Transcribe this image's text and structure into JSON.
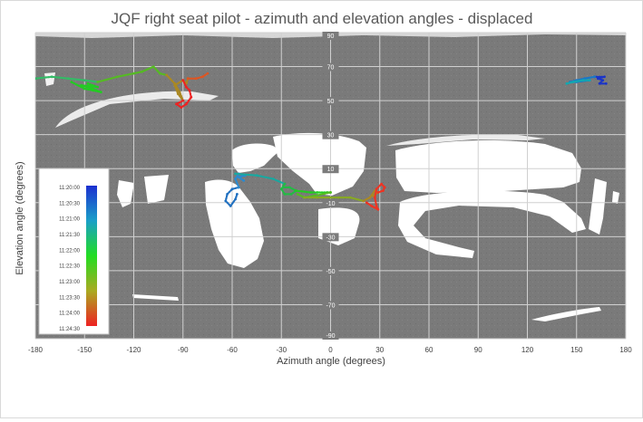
{
  "chart_data": {
    "type": "scatter",
    "title": "JQF right seat pilot - azimuth and elevation angles - displaced",
    "xlabel": "Azimuth angle (degrees)",
    "ylabel": "Elevation angle (degrees)",
    "xlim": [
      -180,
      180
    ],
    "ylim": [
      -90,
      90
    ],
    "x_ticks": [
      -180,
      -150,
      -120,
      -90,
      -60,
      -30,
      0,
      30,
      60,
      90,
      120,
      150,
      180
    ],
    "y_ticks": [
      90,
      70,
      50,
      30,
      10,
      -10,
      -30,
      -50,
      -70,
      -90
    ],
    "grid": true,
    "background_color": "#7b7b7b",
    "obstruction_color": "#ffffff",
    "time_legend": {
      "labels": [
        "11:20:00",
        "11:20:30",
        "11:21:00",
        "11:21:30",
        "11:22:00",
        "11:22:30",
        "11:23:00",
        "11:23:30",
        "11:24:00",
        "11:24:30"
      ],
      "colors": [
        "#1c2fd0",
        "#1aa0c8",
        "#22dd22",
        "#aaaa22",
        "#ee2222"
      ],
      "placement": "left"
    },
    "segments": [
      {
        "color": "#1a34c8",
        "points": [
          [
            168,
            60
          ],
          [
            164,
            60
          ],
          [
            166,
            62
          ],
          [
            163,
            63
          ],
          [
            167,
            64
          ],
          [
            161,
            64
          ]
        ]
      },
      {
        "color": "#1878c8",
        "points": [
          [
            161,
            64
          ],
          [
            155,
            63
          ],
          [
            150,
            62
          ],
          [
            146,
            61
          ],
          [
            150,
            61
          ],
          [
            158,
            62
          ]
        ]
      },
      {
        "color": "#12a8b0",
        "points": [
          [
            158,
            62
          ],
          [
            154,
            62
          ],
          [
            148,
            61
          ],
          [
            144,
            60
          ]
        ]
      },
      {
        "color": "#2070c0",
        "points": [
          [
            -56,
            -1
          ],
          [
            -60,
            -2
          ],
          [
            -63,
            -5
          ],
          [
            -64,
            -9
          ],
          [
            -61,
            -12
          ],
          [
            -58,
            -8
          ],
          [
            -57,
            -5
          ]
        ]
      },
      {
        "color": "#2a8ad0",
        "points": [
          [
            -56,
            -1
          ],
          [
            -58,
            4
          ],
          [
            -56,
            7
          ],
          [
            -52,
            6
          ],
          [
            -56,
            5
          ],
          [
            -53,
            3
          ]
        ]
      },
      {
        "color": "#18a8a0",
        "points": [
          [
            -58,
            7
          ],
          [
            -45,
            6
          ],
          [
            -35,
            4
          ],
          [
            -28,
            1
          ]
        ]
      },
      {
        "color": "#22bb44",
        "points": [
          [
            -28,
            1
          ],
          [
            -30,
            -2
          ],
          [
            -28,
            -5
          ],
          [
            -24,
            -5
          ],
          [
            -21,
            -3
          ],
          [
            -25,
            -1
          ],
          [
            -29,
            -1
          ]
        ]
      },
      {
        "color": "#22cc22",
        "points": [
          [
            -21,
            -3
          ],
          [
            -12,
            -4
          ],
          [
            -8,
            -4
          ],
          [
            -2,
            -4
          ],
          [
            0,
            -4
          ]
        ]
      },
      {
        "color": "#55bb22",
        "points": [
          [
            0,
            -4
          ],
          [
            -10,
            -6
          ],
          [
            -16,
            -7
          ],
          [
            -20,
            -5
          ]
        ]
      },
      {
        "color": "#88aa22",
        "points": [
          [
            -16,
            -7
          ],
          [
            -8,
            -7
          ],
          [
            0,
            -7
          ],
          [
            5,
            -7
          ],
          [
            12,
            -7
          ],
          [
            20,
            -9
          ]
        ]
      },
      {
        "color": "#aa8822",
        "points": [
          [
            20,
            -9
          ],
          [
            24,
            -7
          ],
          [
            27,
            -3
          ],
          [
            29,
            -4
          ],
          [
            26,
            -6
          ]
        ]
      },
      {
        "color": "#ee3322",
        "points": [
          [
            29,
            -4
          ],
          [
            32,
            -3
          ],
          [
            33,
            -1
          ],
          [
            31,
            1
          ],
          [
            28,
            -2
          ],
          [
            27,
            -7
          ],
          [
            28,
            -12
          ],
          [
            29,
            -14
          ],
          [
            25,
            -12
          ],
          [
            22,
            -10
          ]
        ]
      },
      {
        "color": "#33bb66",
        "points": [
          [
            -180,
            63
          ],
          [
            -170,
            64
          ],
          [
            -160,
            63
          ],
          [
            -150,
            62
          ],
          [
            -142,
            61
          ]
        ]
      },
      {
        "color": "#22cc22",
        "points": [
          [
            -158,
            61
          ],
          [
            -150,
            57
          ],
          [
            -145,
            56
          ],
          [
            -140,
            55
          ],
          [
            -145,
            57
          ],
          [
            -152,
            59
          ],
          [
            -142,
            58
          ],
          [
            -148,
            60
          ]
        ]
      },
      {
        "color": "#55bb22",
        "points": [
          [
            -142,
            61
          ],
          [
            -130,
            64
          ],
          [
            -120,
            66
          ],
          [
            -115,
            67
          ],
          [
            -108,
            70
          ],
          [
            -104,
            66
          ],
          [
            -100,
            65
          ]
        ]
      },
      {
        "color": "#aa8822",
        "points": [
          [
            -100,
            65
          ],
          [
            -95,
            60
          ],
          [
            -92,
            55
          ],
          [
            -90,
            50
          ],
          [
            -93,
            54
          ],
          [
            -95,
            59
          ],
          [
            -90,
            62
          ],
          [
            -88,
            60
          ],
          [
            -87,
            63
          ]
        ]
      },
      {
        "color": "#dd5522",
        "points": [
          [
            -87,
            63
          ],
          [
            -82,
            63
          ],
          [
            -78,
            64
          ],
          [
            -75,
            66
          ]
        ]
      },
      {
        "color": "#ee2222",
        "points": [
          [
            -90,
            62
          ],
          [
            -88,
            58
          ],
          [
            -86,
            56
          ],
          [
            -85,
            52
          ],
          [
            -88,
            48
          ],
          [
            -91,
            46
          ],
          [
            -94,
            48
          ],
          [
            -90,
            50
          ]
        ]
      }
    ]
  }
}
